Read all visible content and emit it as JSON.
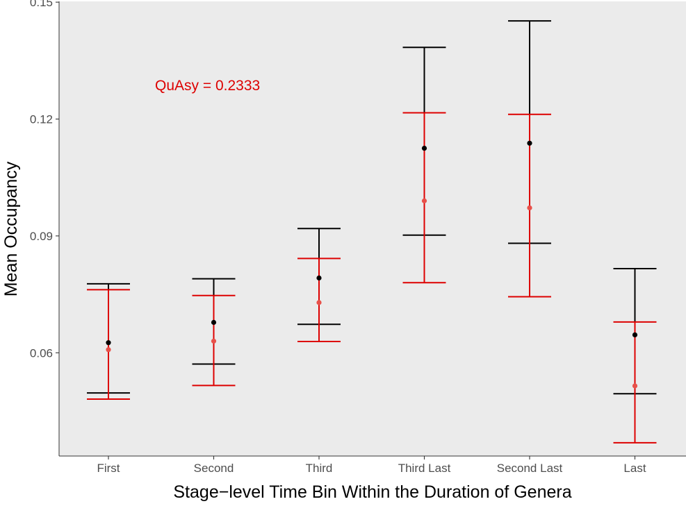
{
  "chart_data": {
    "type": "scatter",
    "xlabel": "Stage−level Time Bin Within the Duration of Genera",
    "ylabel": "Mean Occupancy",
    "categories": [
      "First",
      "Second",
      "Third",
      "Third Last",
      "Second Last",
      "Last"
    ],
    "ylim": [
      0.0335,
      0.1502
    ],
    "yticks": [
      0.06,
      0.09,
      0.12,
      0.15
    ],
    "ytick_labels": [
      "0.06",
      "0.09",
      "0.12",
      "0.15"
    ],
    "grid": false,
    "annotation": {
      "text": "QuAsy = 0.2333",
      "color": "#dd0000"
    },
    "series": [
      {
        "color": "#000000",
        "values": [
          0.0626,
          0.0678,
          0.0792,
          0.1125,
          0.1138,
          0.0646
        ],
        "lower": [
          0.0497,
          0.0571,
          0.0673,
          0.0902,
          0.0881,
          0.0495
        ],
        "upper": [
          0.0777,
          0.079,
          0.0919,
          0.1384,
          0.1452,
          0.0816
        ]
      },
      {
        "color": "#dd0000",
        "point_color": "#e8514a",
        "values": [
          0.0608,
          0.063,
          0.0729,
          0.099,
          0.0972,
          0.0515
        ],
        "lower": [
          0.0481,
          0.0516,
          0.0629,
          0.078,
          0.0744,
          0.0369
        ],
        "upper": [
          0.0762,
          0.0747,
          0.0842,
          0.1216,
          0.1212,
          0.0679
        ]
      }
    ]
  }
}
